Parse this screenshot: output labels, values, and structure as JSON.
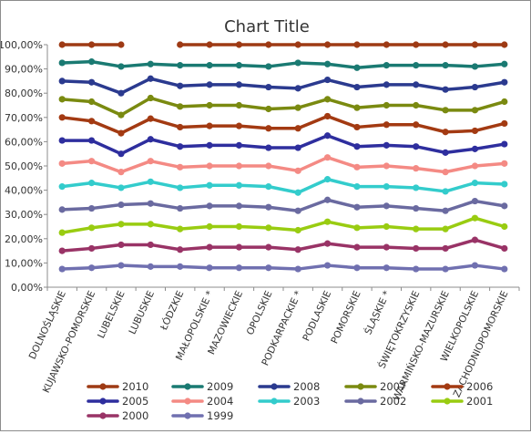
{
  "chart_data": {
    "type": "line",
    "title": "Chart Title",
    "xlabel": "",
    "ylabel": "",
    "ylim": [
      0,
      100
    ],
    "y_ticks": [
      "0,00%",
      "10,00%",
      "20,00%",
      "30,00%",
      "40,00%",
      "50,00%",
      "60,00%",
      "70,00%",
      "80,00%",
      "90,00%",
      "100,00%"
    ],
    "grid": false,
    "legend_position": "bottom",
    "categories": [
      "DOLNOŚLĄSKIE",
      "KUJAWSKO-POMORSKIE",
      "LUBELSKIE",
      "LUBUSKIE",
      "ŁÓDZKIE",
      "MAŁOPOLSKIE *",
      "MAZOWIECKIE",
      "OPOLSKIE",
      "PODKARPACKIE *",
      "PODLASKIE",
      "POMORSKIE",
      "ŚLĄSKIE *",
      "ŚWIĘTOKRZYSKIE",
      "WARMIŃSKO-MAZURSKIE",
      "WIELKOPOLSKIE",
      "ZACHODNIOPOMORSKIE"
    ],
    "series": [
      {
        "name": "2010",
        "color": "#9e3a14",
        "values": [
          100,
          100,
          100,
          null,
          100,
          100,
          100,
          100,
          100,
          100,
          100,
          100,
          100,
          100,
          100,
          100
        ]
      },
      {
        "name": "2009",
        "color": "#1a7a72",
        "values": [
          92.5,
          93,
          91,
          92,
          91.5,
          91.5,
          91.5,
          91,
          92.5,
          92,
          90.5,
          91.5,
          91.5,
          91.5,
          91,
          92
        ]
      },
      {
        "name": "2008",
        "color": "#2b3a8f",
        "values": [
          85,
          84.5,
          80,
          86,
          83,
          83.5,
          83.5,
          82.5,
          82,
          85.5,
          82.5,
          83.5,
          83.5,
          81.5,
          82.5,
          84.5
        ]
      },
      {
        "name": "2007",
        "color": "#7a8a10",
        "values": [
          77.5,
          76.5,
          71,
          78,
          74.5,
          75,
          75,
          73.5,
          74,
          77.5,
          74,
          75,
          75,
          73,
          73,
          76.5
        ]
      },
      {
        "name": "2006",
        "color": "#a33a12",
        "values": [
          70,
          68.5,
          63.5,
          69.5,
          66,
          66.5,
          66.5,
          65.5,
          65.5,
          70.5,
          66,
          67,
          67,
          64,
          64.5,
          67.5
        ]
      },
      {
        "name": "2005",
        "color": "#2e2e9e",
        "values": [
          60.5,
          60.5,
          55,
          61,
          58,
          58.5,
          58.5,
          57.5,
          57.5,
          62.5,
          58,
          58.5,
          58,
          55.5,
          57,
          59
        ]
      },
      {
        "name": "2004",
        "color": "#f48a84",
        "values": [
          51,
          52,
          47.5,
          52,
          49.5,
          50,
          50,
          50,
          48,
          53.5,
          49.5,
          50,
          49,
          47.5,
          50,
          51
        ]
      },
      {
        "name": "2003",
        "color": "#33cccc",
        "values": [
          41.5,
          43,
          41,
          43.5,
          41,
          42,
          42,
          41.5,
          39,
          44.5,
          41.5,
          41.5,
          41,
          39.5,
          43,
          42.5
        ]
      },
      {
        "name": "2002",
        "color": "#6a6aa0",
        "values": [
          32,
          32.5,
          34,
          34.5,
          32.5,
          33.5,
          33.5,
          33,
          31.5,
          36,
          33,
          33.5,
          32.5,
          31.5,
          35.5,
          33.5
        ]
      },
      {
        "name": "2001",
        "color": "#99cc11",
        "values": [
          22.5,
          24.5,
          26,
          26,
          24,
          25,
          25,
          24.5,
          23.5,
          27,
          24.5,
          25,
          24,
          24,
          28.5,
          25
        ]
      },
      {
        "name": "2000",
        "color": "#993366",
        "values": [
          15,
          16,
          17.5,
          17.5,
          15.5,
          16.5,
          16.5,
          16.5,
          15.5,
          18,
          16.5,
          16.5,
          16,
          16,
          19.5,
          16
        ]
      },
      {
        "name": "1999",
        "color": "#7070b0",
        "values": [
          7.5,
          8,
          9,
          8.5,
          8.5,
          8,
          8,
          8,
          7.5,
          9,
          8,
          8,
          7.5,
          7.5,
          9,
          7.5
        ]
      }
    ]
  }
}
